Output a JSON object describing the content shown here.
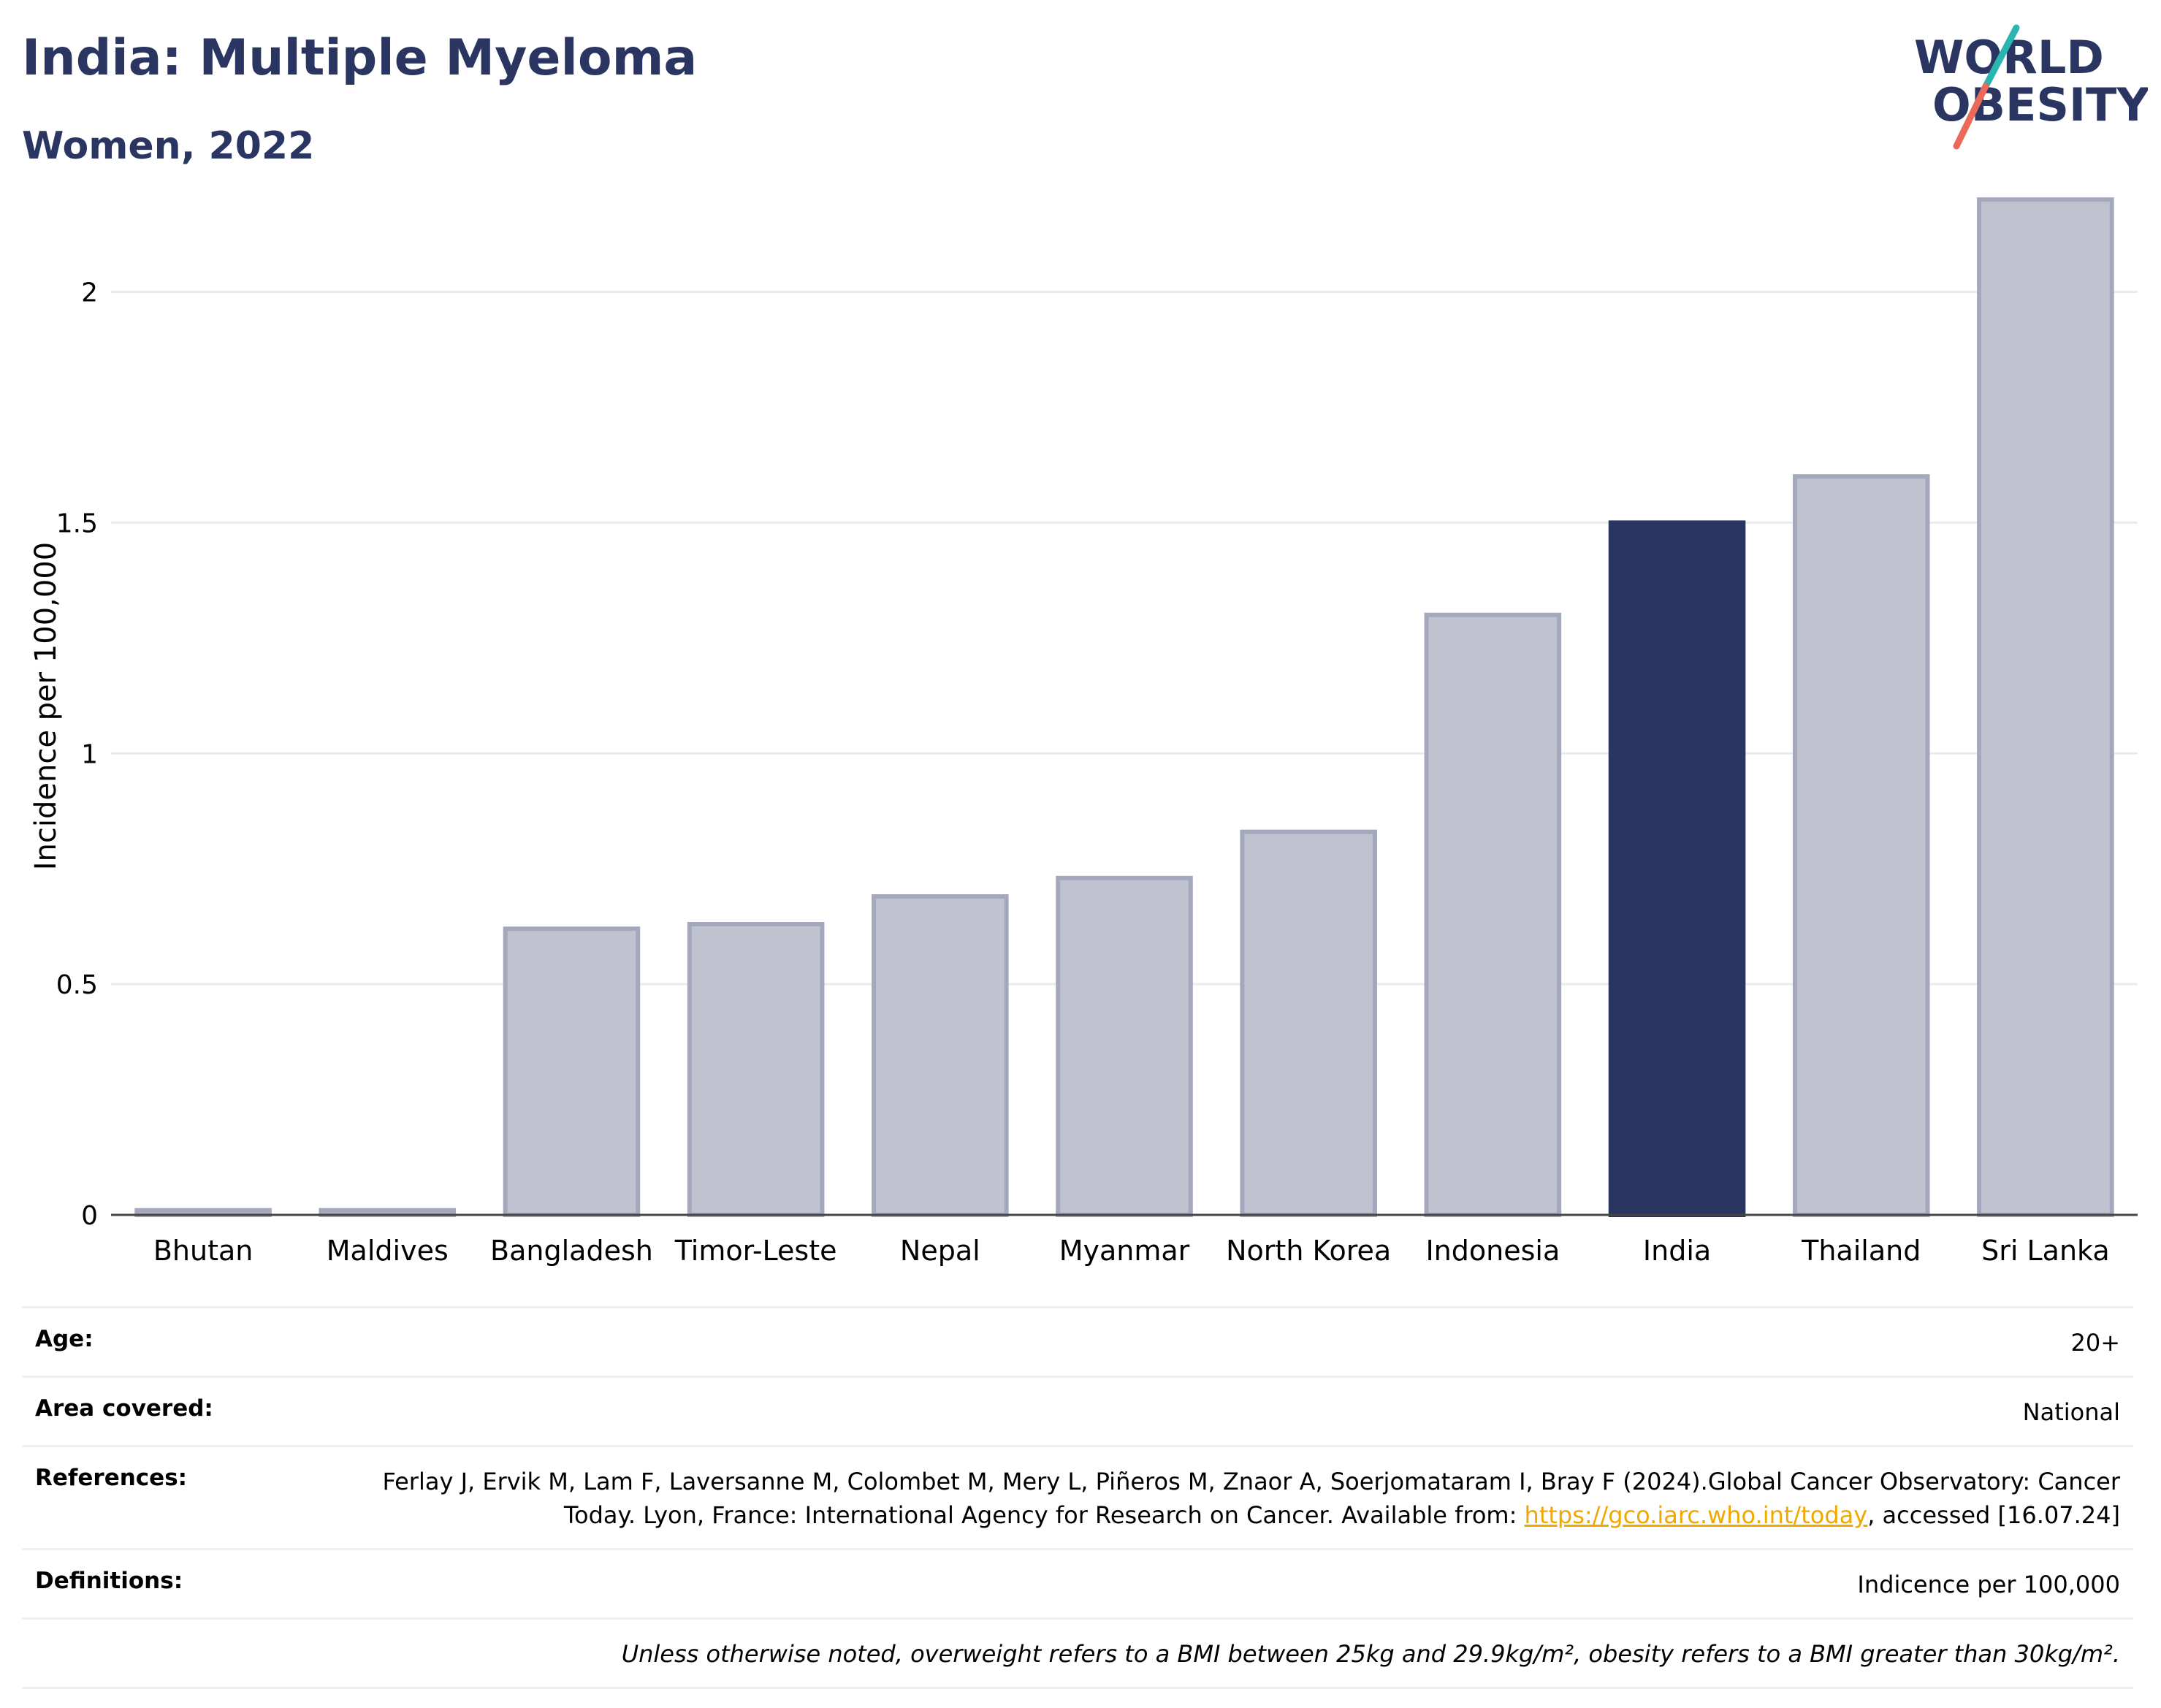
{
  "header": {
    "title": "India: Multiple Myeloma",
    "subtitle": "Women, 2022"
  },
  "logo": {
    "line1": "WORLD",
    "line2": "OBESITY",
    "colors": {
      "text": "#2a3562",
      "slash_teal": "#2bb5b0",
      "slash_coral": "#ea6a5a"
    }
  },
  "chart_data": {
    "type": "bar",
    "categories": [
      "Bhutan",
      "Maldives",
      "Bangladesh",
      "Timor-Leste",
      "Nepal",
      "Myanmar",
      "North Korea",
      "Indonesia",
      "India",
      "Thailand",
      "Sri Lanka"
    ],
    "values": [
      0.01,
      0.01,
      0.62,
      0.63,
      0.69,
      0.73,
      0.83,
      1.3,
      1.5,
      1.6,
      2.2
    ],
    "highlight": "India",
    "ylabel": "Incidence per 100,000",
    "xlabel": "",
    "ylim": [
      0,
      2.3
    ],
    "yticks": [
      0,
      0.5,
      1,
      1.5,
      2
    ],
    "ytick_labels": [
      "0",
      "0.5",
      "1",
      "1.5",
      "2"
    ],
    "grid": true,
    "colors": {
      "bar": "#c0c3cf",
      "bar_edge": "#a4a8bd",
      "highlight": "#2a3562",
      "grid": "#e9ebf2",
      "axis": "#444444"
    }
  },
  "info": {
    "age": {
      "label": "Age:",
      "value": "20+"
    },
    "area": {
      "label": "Area covered:",
      "value": "National"
    },
    "references": {
      "label": "References:",
      "text_before": "Ferlay J, Ervik M, Lam F, Laversanne M, Colombet M, Mery L, Piñeros M, Znaor A, Soerjomataram I, Bray F (2024).Global Cancer Observatory: Cancer Today. Lyon, France: International Agency for Research on Cancer. Available from: ",
      "link": "https://gco.iarc.who.int/today",
      "text_after": ", accessed [16.07.24]"
    },
    "definitions": {
      "label": "Definitions:",
      "value": "Indicence per 100,000"
    },
    "note": "Unless otherwise noted, overweight refers to a BMI between 25kg and 29.9kg/m², obesity refers to a BMI greater than 30kg/m²."
  }
}
